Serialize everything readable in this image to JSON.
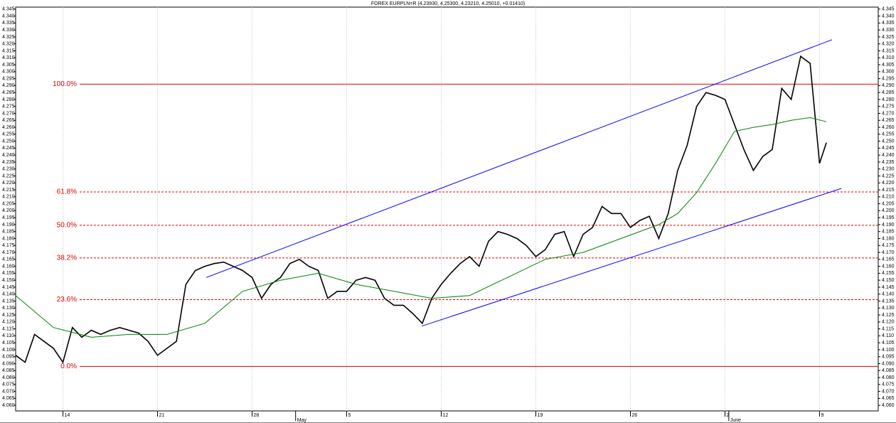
{
  "chart_data": {
    "type": "line",
    "title": "FOREX EURPLN=R (4.23930, 4.25300, 4.23210, 4.25010, +0.01410)",
    "xlim": [
      0,
      45.6
    ],
    "ylim": [
      4.056,
      4.349
    ],
    "xticks": [
      {
        "value": 2.5,
        "label": "14"
      },
      {
        "value": 7.5,
        "label": "21"
      },
      {
        "value": 12.5,
        "label": "28"
      },
      {
        "value": 17.5,
        "label": "5"
      },
      {
        "value": 22.5,
        "label": "12"
      },
      {
        "value": 27.5,
        "label": "19"
      },
      {
        "value": 32.5,
        "label": "26"
      },
      {
        "value": 37.5,
        "label": "2"
      },
      {
        "value": 42.5,
        "label": "9"
      }
    ],
    "month_labels": [
      {
        "value": 14.8,
        "label": "May"
      },
      {
        "value": 37.7,
        "label": "June"
      }
    ],
    "yticks": [
      {
        "value": 4.06,
        "label": "4.060"
      },
      4.065,
      {
        "value": 4.07,
        "label": "4.070"
      },
      4.075,
      {
        "value": 4.08,
        "label": "4.080"
      },
      4.085,
      {
        "value": 4.09,
        "label": "4.090"
      },
      4.095,
      {
        "value": 4.1,
        "label": "4.100"
      },
      4.105,
      {
        "value": 4.11,
        "label": "4.110"
      },
      4.115,
      {
        "value": 4.12,
        "label": "4.120"
      },
      4.125,
      {
        "value": 4.13,
        "label": "4.130"
      },
      4.135,
      {
        "value": 4.14,
        "label": "4.140"
      },
      4.145,
      {
        "value": 4.15,
        "label": "4.150"
      },
      4.155,
      {
        "value": 4.16,
        "label": "4.160"
      },
      4.165,
      {
        "value": 4.17,
        "label": "4.170"
      },
      4.175,
      {
        "value": 4.18,
        "label": "4.180"
      },
      4.185,
      {
        "value": 4.19,
        "label": "4.190"
      },
      4.195,
      {
        "value": 4.2,
        "label": "4.200"
      },
      4.205,
      {
        "value": 4.21,
        "label": "4.210"
      },
      4.215,
      {
        "value": 4.22,
        "label": "4.220"
      },
      4.225,
      {
        "value": 4.23,
        "label": "4.230"
      },
      4.235,
      {
        "value": 4.24,
        "label": "4.240"
      },
      4.245,
      {
        "value": 4.25,
        "label": "4.250"
      },
      4.255,
      {
        "value": 4.26,
        "label": "4.260"
      },
      4.265,
      {
        "value": 4.27,
        "label": "4.270"
      },
      4.275,
      {
        "value": 4.28,
        "label": "4.280"
      },
      4.285,
      {
        "value": 4.29,
        "label": "4.290"
      },
      4.295,
      {
        "value": 4.3,
        "label": "4.300"
      },
      4.305,
      {
        "value": 4.31,
        "label": "4.310"
      },
      4.315,
      {
        "value": 4.32,
        "label": "4.320"
      },
      4.325,
      {
        "value": 4.33,
        "label": "4.330"
      },
      4.335,
      {
        "value": 4.34,
        "label": "4.340"
      },
      4.345
    ],
    "grid": true,
    "series": [
      {
        "name": "EURPLN=R",
        "color": "#000000",
        "x": [
          0,
          0.5,
          1,
          1.5,
          2,
          2.5,
          3,
          3.5,
          4,
          4.5,
          5,
          5.5,
          6,
          6.5,
          7,
          7.5,
          8,
          8.5,
          9,
          9.5,
          10,
          10.5,
          11,
          11.5,
          12,
          12.5,
          13,
          13.5,
          14,
          14.5,
          15,
          15.5,
          16,
          16.5,
          17,
          17.5,
          18,
          18.5,
          19,
          19.5,
          20,
          20.5,
          21,
          21.5,
          22,
          22.5,
          23,
          23.5,
          24,
          24.5,
          25,
          25.5,
          26,
          26.5,
          27,
          27.5,
          28,
          28.5,
          29,
          29.5,
          30,
          30.5,
          31,
          31.5,
          32,
          32.5,
          33,
          33.5,
          34,
          34.5,
          35,
          35.5,
          36,
          36.5,
          37,
          37.5,
          38,
          38.5,
          39,
          39.5,
          40,
          40.5,
          41,
          41.5,
          42,
          42.5,
          42.86
        ],
        "values": [
          4.096,
          4.091,
          4.111,
          4.106,
          4.101,
          4.091,
          4.116,
          4.109,
          4.114,
          4.111,
          4.114,
          4.116,
          4.114,
          4.112,
          4.106,
          4.096,
          4.101,
          4.106,
          4.147,
          4.157,
          4.16,
          4.162,
          4.163,
          4.16,
          4.157,
          4.152,
          4.137,
          4.147,
          4.152,
          4.162,
          4.165,
          4.16,
          4.157,
          4.137,
          4.142,
          4.142,
          4.15,
          4.152,
          4.15,
          4.137,
          4.132,
          4.132,
          4.126,
          4.119,
          4.137,
          4.147,
          4.155,
          4.162,
          4.167,
          4.16,
          4.178,
          4.185,
          4.183,
          4.18,
          4.175,
          4.167,
          4.172,
          4.183,
          4.185,
          4.167,
          4.183,
          4.188,
          4.203,
          4.198,
          4.198,
          4.188,
          4.193,
          4.196,
          4.18,
          4.198,
          4.229,
          4.247,
          4.275,
          4.285,
          4.283,
          4.28,
          4.262,
          4.244,
          4.229,
          4.239,
          4.244,
          4.288,
          4.28,
          4.311,
          4.306,
          4.234,
          4.249
        ]
      },
      {
        "name": "Moving average",
        "color": "#008000",
        "x": [
          0,
          2,
          4,
          6,
          8,
          10,
          12,
          14,
          16,
          18,
          20,
          22,
          24,
          26,
          28,
          30,
          32,
          34,
          35,
          36,
          37,
          38,
          39,
          40,
          41,
          42,
          42.86
        ],
        "values": [
          4.139,
          4.116,
          4.109,
          4.111,
          4.111,
          4.119,
          4.142,
          4.15,
          4.155,
          4.147,
          4.142,
          4.137,
          4.139,
          4.152,
          4.165,
          4.17,
          4.18,
          4.19,
          4.198,
          4.213,
          4.234,
          4.257,
          4.26,
          4.262,
          4.265,
          4.267,
          4.264
        ]
      },
      {
        "name": "Upper channel",
        "color": "#0000ff",
        "x": [
          10.08,
          43.16
        ],
        "values": [
          4.152,
          4.323
        ]
      },
      {
        "name": "Lower channel",
        "color": "#0000ff",
        "x": [
          21.47,
          43.65
        ],
        "values": [
          4.117,
          4.216
        ]
      }
    ],
    "fib_levels": [
      {
        "label": "100.0%",
        "value": 4.291,
        "style": "solid"
      },
      {
        "label": "61.8%",
        "value": 4.2135,
        "style": "dashed"
      },
      {
        "label": "50.0%",
        "value": 4.1895,
        "style": "dashed"
      },
      {
        "label": "38.2%",
        "value": 4.166,
        "style": "dashed"
      },
      {
        "label": "23.6%",
        "value": 4.136,
        "style": "dashed"
      },
      {
        "label": "0.0%",
        "value": 4.088,
        "style": "solid"
      }
    ]
  }
}
